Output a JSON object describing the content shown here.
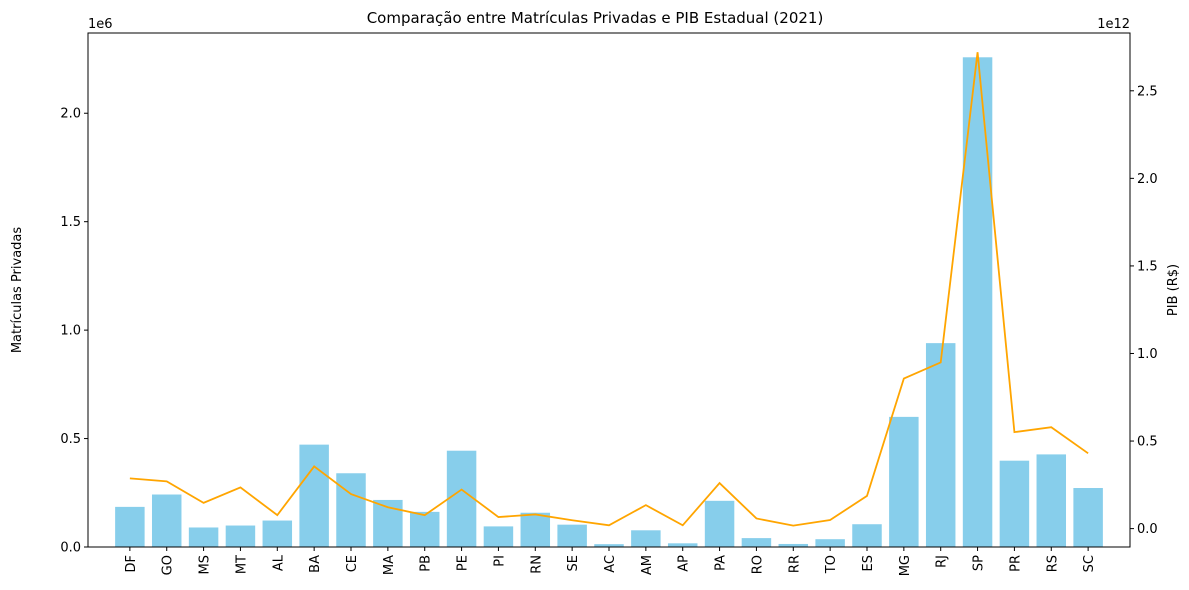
{
  "chart_data": {
    "type": "bar",
    "title": "Comparação entre Matrículas Privadas e PIB Estadual (2021)",
    "xlabel": "",
    "ylabel": "Matrículas Privadas",
    "ylabel_right": "PIB (R$)",
    "offset_left": "1e6",
    "offset_right": "1e12",
    "categories": [
      "DF",
      "GO",
      "MS",
      "MT",
      "AL",
      "BA",
      "CE",
      "MA",
      "PB",
      "PE",
      "PI",
      "RN",
      "SE",
      "AC",
      "AM",
      "AP",
      "PA",
      "RO",
      "RR",
      "TO",
      "ES",
      "MG",
      "RJ",
      "SP",
      "PR",
      "RS",
      "SC"
    ],
    "ylim": [
      0,
      2.37
    ],
    "ylim_right": [
      -0.105,
      2.83
    ],
    "yticks": [
      0.0,
      0.5,
      1.0,
      1.5,
      2.0
    ],
    "yticks_right": [
      0.0,
      0.5,
      1.0,
      1.5,
      2.0,
      2.5
    ],
    "grid": false,
    "series": [
      {
        "name": "Matrículas Privadas",
        "kind": "bar",
        "axis": "left",
        "color": "#87CEEB",
        "values": [
          0.185,
          0.242,
          0.09,
          0.099,
          0.122,
          0.472,
          0.34,
          0.217,
          0.162,
          0.444,
          0.095,
          0.158,
          0.103,
          0.013,
          0.077,
          0.017,
          0.213,
          0.041,
          0.014,
          0.036,
          0.105,
          0.6,
          0.94,
          2.258,
          0.398,
          0.427,
          0.272
        ]
      },
      {
        "name": "PIB (R$)",
        "kind": "line",
        "axis": "right",
        "color": "#FFA500",
        "values": [
          0.287,
          0.27,
          0.147,
          0.235,
          0.077,
          0.355,
          0.197,
          0.122,
          0.077,
          0.223,
          0.066,
          0.081,
          0.048,
          0.019,
          0.134,
          0.019,
          0.26,
          0.058,
          0.017,
          0.049,
          0.187,
          0.857,
          0.949,
          2.72,
          0.551,
          0.579,
          0.43
        ]
      }
    ]
  }
}
